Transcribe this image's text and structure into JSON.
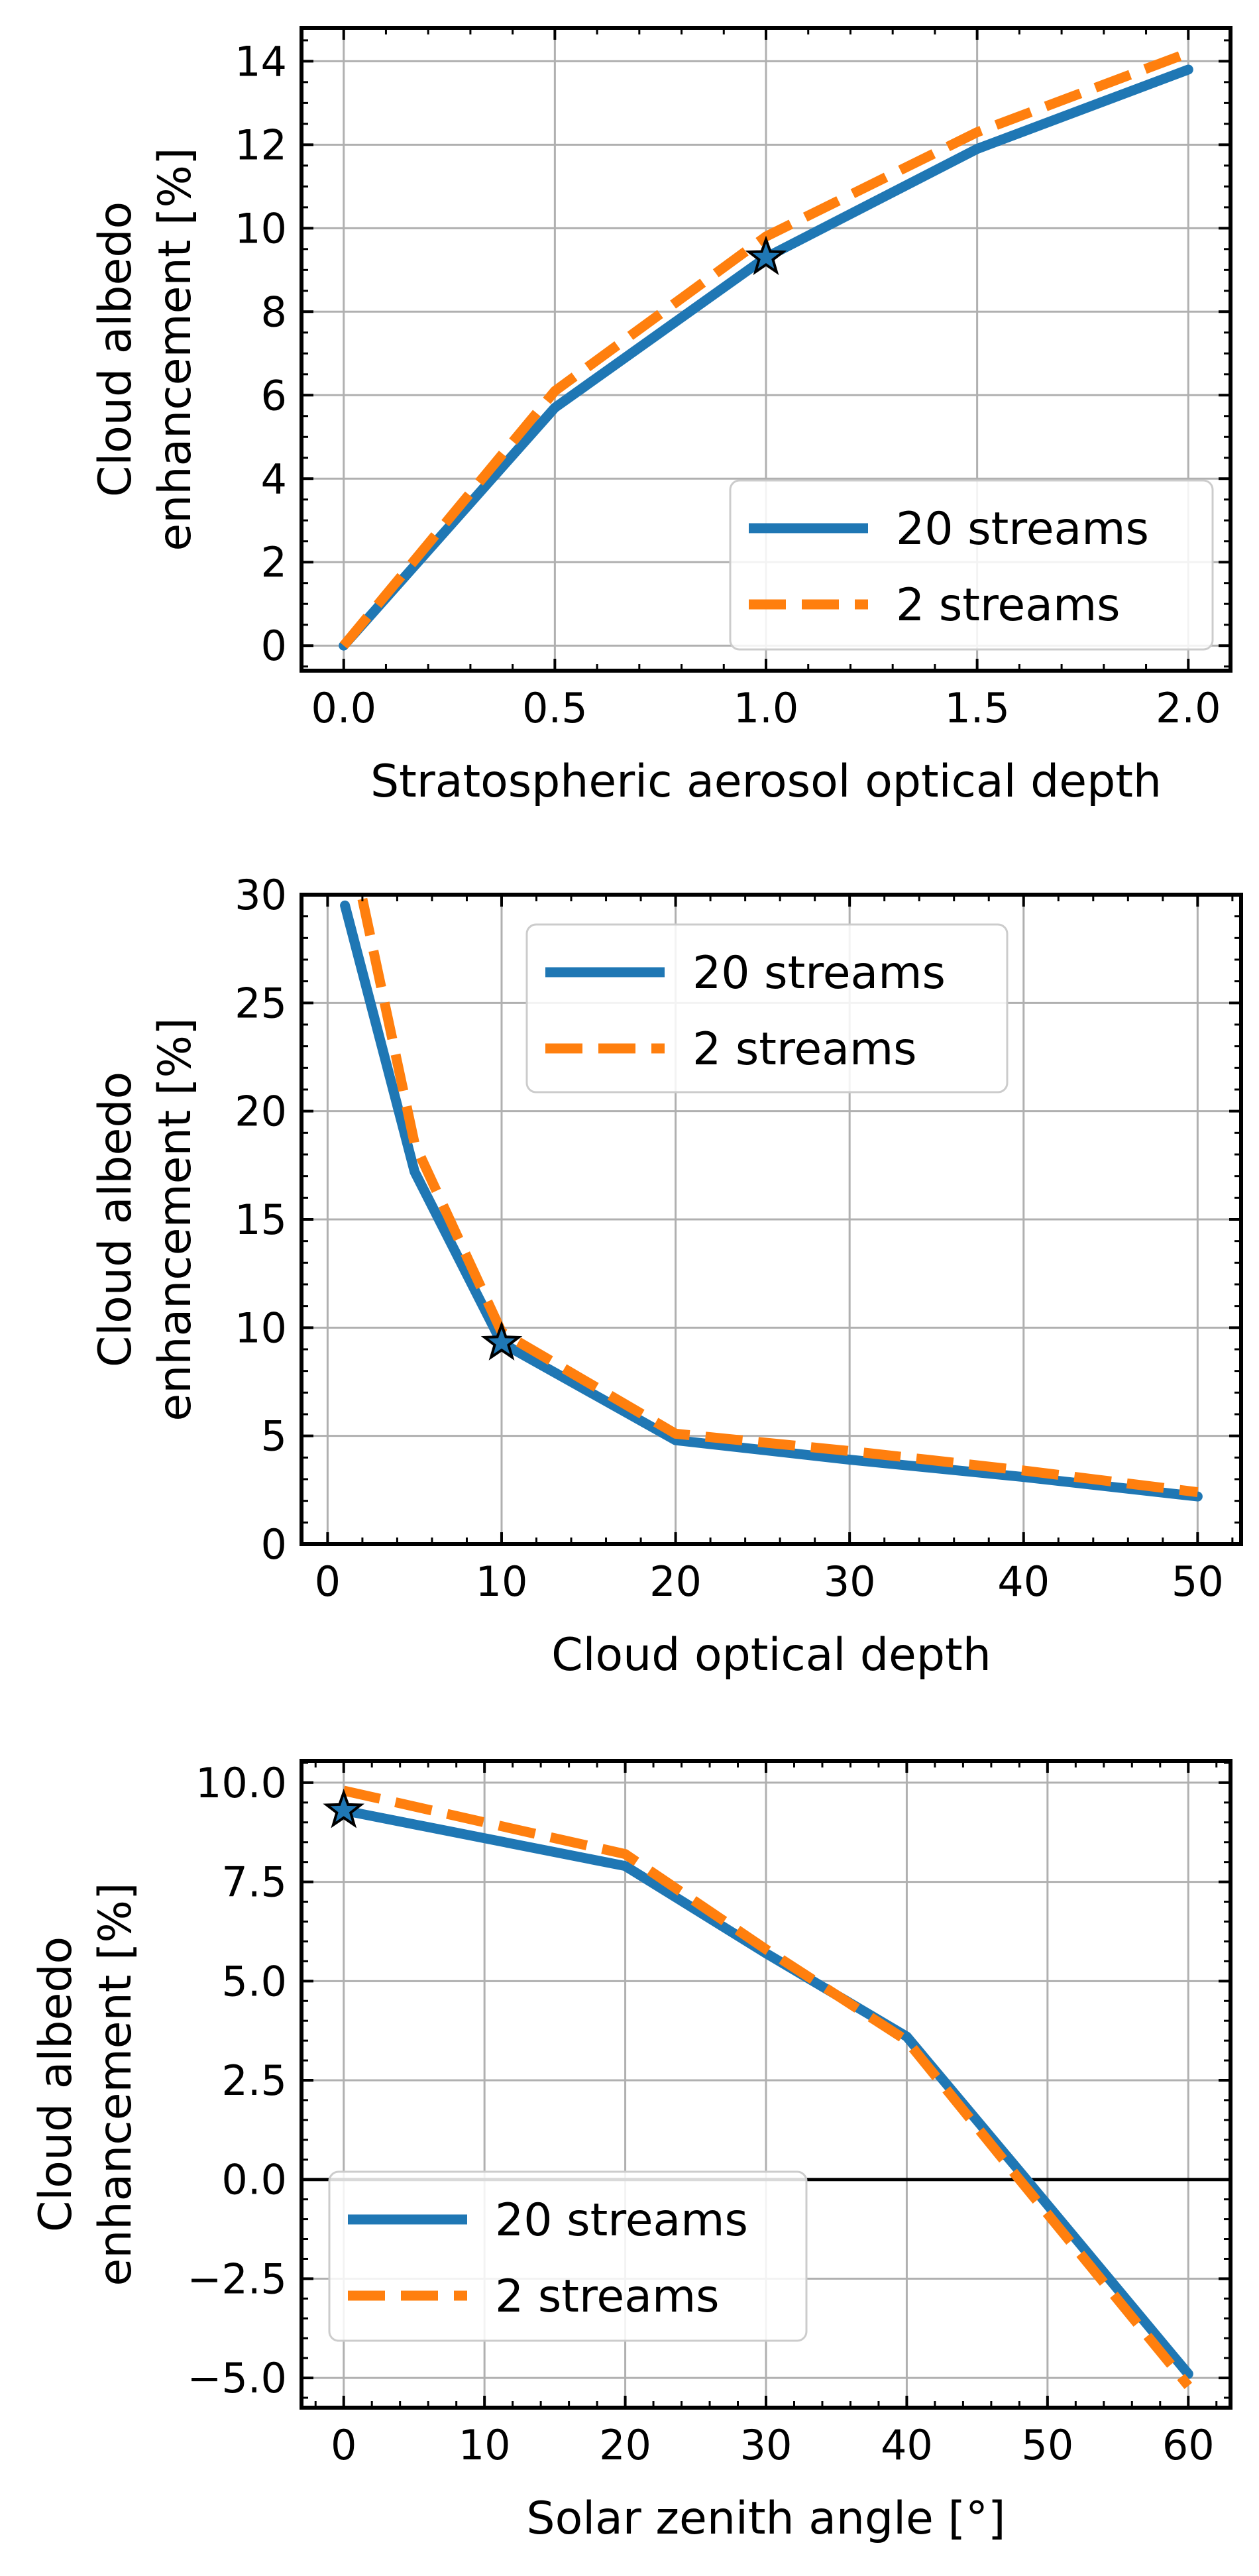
{
  "chart_data": [
    {
      "type": "line",
      "xlabel": "Stratospheric aerosol optical depth",
      "ylabel": [
        "Cloud albedo",
        "enhancement [%]"
      ],
      "xlim": [
        -0.1,
        2.1
      ],
      "ylim": [
        -0.6,
        14.8
      ],
      "xticks": [
        0.0,
        0.5,
        1.0,
        1.5,
        2.0
      ],
      "xtick_labels": [
        "0.0",
        "0.5",
        "1.0",
        "1.5",
        "2.0"
      ],
      "yticks": [
        0,
        2,
        4,
        6,
        8,
        10,
        12,
        14
      ],
      "ytick_labels": [
        "0",
        "2",
        "4",
        "6",
        "8",
        "10",
        "12",
        "14"
      ],
      "x_minor_step": 0.1,
      "y_minor_step": 0.5,
      "grid": true,
      "legend_position": "lower-right",
      "series": [
        {
          "name": "20 streams",
          "style": "solid",
          "color": "#1f77b4",
          "x": [
            0,
            0.5,
            1.0,
            1.5,
            2.0
          ],
          "y": [
            0,
            5.7,
            9.3,
            11.9,
            13.8
          ]
        },
        {
          "name": "2 streams",
          "style": "dashed",
          "color": "#ff7f0e",
          "x": [
            0,
            0.5,
            1.0,
            1.5,
            2.0
          ],
          "y": [
            0,
            6.1,
            9.8,
            12.3,
            14.2
          ]
        }
      ],
      "marker": {
        "shape": "star",
        "x": 1.0,
        "y": 9.3,
        "color": "#1f77b4"
      }
    },
    {
      "type": "line",
      "xlabel": "Cloud optical depth",
      "ylabel": [
        "Cloud albedo",
        "enhancement [%]"
      ],
      "xlim": [
        -1.5,
        52.5
      ],
      "ylim": [
        0,
        30
      ],
      "xticks": [
        0,
        10,
        20,
        30,
        40,
        50
      ],
      "xtick_labels": [
        "0",
        "10",
        "20",
        "30",
        "40",
        "50"
      ],
      "yticks": [
        0,
        5,
        10,
        15,
        20,
        25,
        30
      ],
      "ytick_labels": [
        "0",
        "5",
        "10",
        "15",
        "20",
        "25",
        "30"
      ],
      "x_minor_step": 2,
      "y_minor_step": 1,
      "grid": true,
      "legend_position": "upper-center",
      "series": [
        {
          "name": "20 streams",
          "style": "solid",
          "color": "#1f77b4",
          "x": [
            1,
            5,
            10,
            20,
            30,
            40,
            50
          ],
          "y": [
            29.5,
            17.2,
            9.3,
            4.8,
            3.9,
            3.1,
            2.2
          ]
        },
        {
          "name": "2 streams",
          "style": "dashed",
          "color": "#ff7f0e",
          "x": [
            2,
            5,
            10,
            20,
            30,
            40,
            50
          ],
          "y": [
            29.8,
            18.5,
            9.8,
            5.1,
            4.3,
            3.4,
            2.4
          ]
        }
      ],
      "marker": {
        "shape": "star",
        "x": 10,
        "y": 9.3,
        "color": "#1f77b4"
      }
    },
    {
      "type": "line",
      "xlabel": "Solar zenith angle [°]",
      "ylabel": [
        "Cloud albedo",
        "enhancement [%]"
      ],
      "xlim": [
        -3,
        63
      ],
      "ylim": [
        -5.75,
        10.55
      ],
      "xticks": [
        0,
        10,
        20,
        30,
        40,
        50,
        60
      ],
      "xtick_labels": [
        "0",
        "10",
        "20",
        "30",
        "40",
        "50",
        "60"
      ],
      "yticks": [
        -5.0,
        -2.5,
        0.0,
        2.5,
        5.0,
        7.5,
        10.0
      ],
      "ytick_labels": [
        "−5.0",
        "−2.5",
        "0.0",
        "2.5",
        "5.0",
        "7.5",
        "10.0"
      ],
      "x_minor_step": 2,
      "y_minor_step": 0.5,
      "grid": true,
      "zero_line": true,
      "legend_position": "lower-left",
      "series": [
        {
          "name": "20 streams",
          "style": "solid",
          "color": "#1f77b4",
          "x": [
            0,
            20,
            30,
            40,
            48.5,
            60
          ],
          "y": [
            9.3,
            7.9,
            5.7,
            3.6,
            0.0,
            -4.9
          ]
        },
        {
          "name": "2 streams",
          "style": "dashed",
          "color": "#ff7f0e",
          "x": [
            0,
            20,
            30,
            40,
            48,
            60
          ],
          "y": [
            9.8,
            8.2,
            5.8,
            3.5,
            0.0,
            -5.2
          ]
        }
      ],
      "marker": {
        "shape": "star",
        "x": 0,
        "y": 9.3,
        "color": "#1f77b4"
      }
    }
  ]
}
